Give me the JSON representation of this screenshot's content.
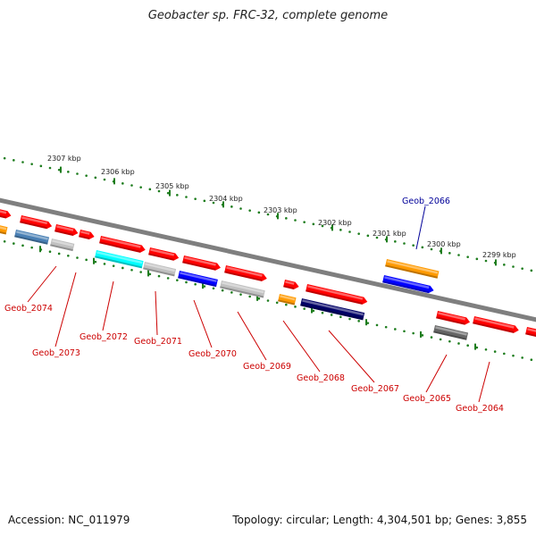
{
  "title": "Geobacter sp. FRC-32, complete genome",
  "footer": {
    "accession": "Accession: NC_011979",
    "summary": "Topology: circular; Length: 4,304,501 bp; Genes: 3,855"
  },
  "colors": {
    "backbone": "#7f7f7f",
    "scale_ticks": "#1e7d1e",
    "label_default": "#cc0000",
    "label_highlight": "#000099",
    "gene_palette": {
      "red": "#ff0000",
      "orange": "#ff9a00",
      "steelblue": "#4a80b5",
      "lightgray": "#c0c0c0",
      "cyan": "#00ffff",
      "blue": "#0000ff",
      "darknavy": "#000066",
      "darkgray": "#666666"
    }
  },
  "scale_labels": [
    "2307 kbp",
    "2306 kbp",
    "2305 kbp",
    "2304 kbp",
    "2303 kbp",
    "2302 kbp",
    "2301 kbp",
    "2300 kbp",
    "2299 kbp"
  ],
  "gene_labels": [
    "Geob_2074",
    "Geob_2073",
    "Geob_2072",
    "Geob_2071",
    "Geob_2070",
    "Geob_2069",
    "Geob_2068",
    "Geob_2067",
    "Geob_2066",
    "Geob_2065",
    "Geob_2064"
  ]
}
